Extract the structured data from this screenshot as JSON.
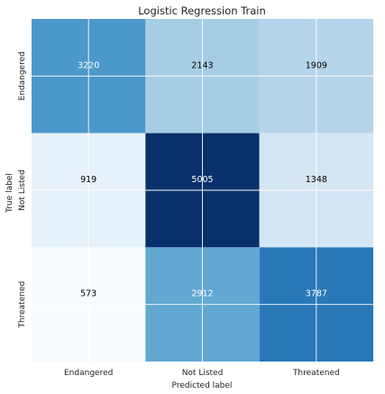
{
  "chart_data": {
    "type": "heatmap",
    "title": "Logistic Regression Train",
    "xlabel": "Predicted label",
    "ylabel": "True label",
    "x_categories": [
      "Endangered",
      "Not Listed",
      "Threatened"
    ],
    "y_categories": [
      "Endangered",
      "Not Listed",
      "Threatened"
    ],
    "values": [
      [
        3220,
        2143,
        1909
      ],
      [
        919,
        5005,
        1348
      ],
      [
        573,
        2912,
        3787
      ]
    ],
    "colormap": "Blues",
    "grid": true,
    "colors": {
      "grid": "#ffffff",
      "text_dark": "#000000",
      "text_light": "#ffffff"
    }
  }
}
